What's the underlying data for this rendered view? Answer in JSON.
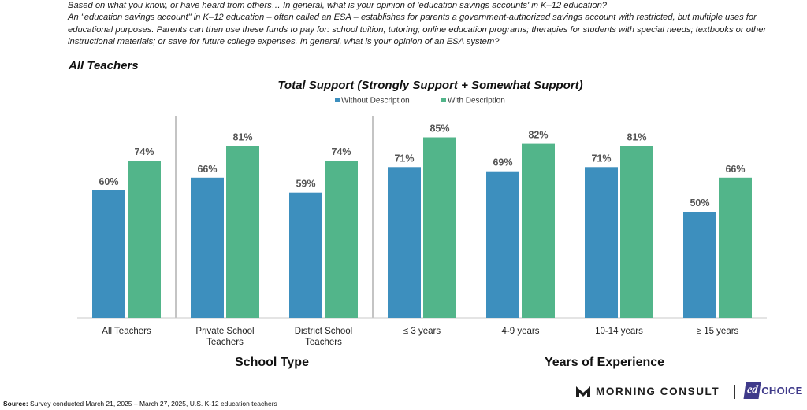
{
  "question": {
    "line1": "Based on what you know, or have heard from others… In general, what is your opinion of 'education savings accounts' in K–12 education?",
    "line2": "An \"education savings account\" in K–12 education – often called an ESA – establishes for parents a government-authorized savings account with restricted, but multiple uses for educational purposes. Parents can then use these funds to pay for: school tuition; tutoring; online education programs; therapies for students with special needs; textbooks or other instructional materials; or save for future college expenses. In general, what is your opinion of an ESA system?"
  },
  "subtitle": "All Teachers",
  "chart_data": {
    "type": "bar",
    "title": "Total Support (Strongly Support + Somewhat Support)",
    "categories": [
      "All Teachers",
      "Private School Teachers",
      "District School Teachers",
      "≤ 3 years",
      "4-9 years",
      "10-14 years",
      "≥ 15 years"
    ],
    "category_lines": [
      [
        "All Teachers"
      ],
      [
        "Private School",
        "Teachers"
      ],
      [
        "District School",
        "Teachers"
      ],
      [
        "≤ 3 years"
      ],
      [
        "4-9 years"
      ],
      [
        "10-14 years"
      ],
      [
        "≥ 15 years"
      ]
    ],
    "series": [
      {
        "name": "Without Description",
        "color": "#3d8fbe",
        "values": [
          60,
          66,
          59,
          71,
          69,
          71,
          50
        ]
      },
      {
        "name": "With Description",
        "color": "#52b58a",
        "values": [
          74,
          81,
          74,
          85,
          82,
          81,
          66
        ]
      }
    ],
    "value_suffix": "%",
    "ylim": [
      0,
      100
    ],
    "legend_position": "top-center",
    "groups": [
      {
        "label": "School Type",
        "categories": [
          "Private School Teachers",
          "District School Teachers"
        ]
      },
      {
        "label": "Years of Experience",
        "categories": [
          "≤ 3 years",
          "4-9 years",
          "10-14 years",
          "≥ 15 years"
        ]
      }
    ]
  },
  "logos": {
    "morning_consult": "MORNING CONSULT",
    "edchoice_ed": "ed",
    "edchoice_choice": "CHOICE"
  },
  "source": {
    "label": "Source:",
    "text": "Survey conducted March 21, 2025 – March 27, 2025, U.S. K-12 education teachers"
  }
}
